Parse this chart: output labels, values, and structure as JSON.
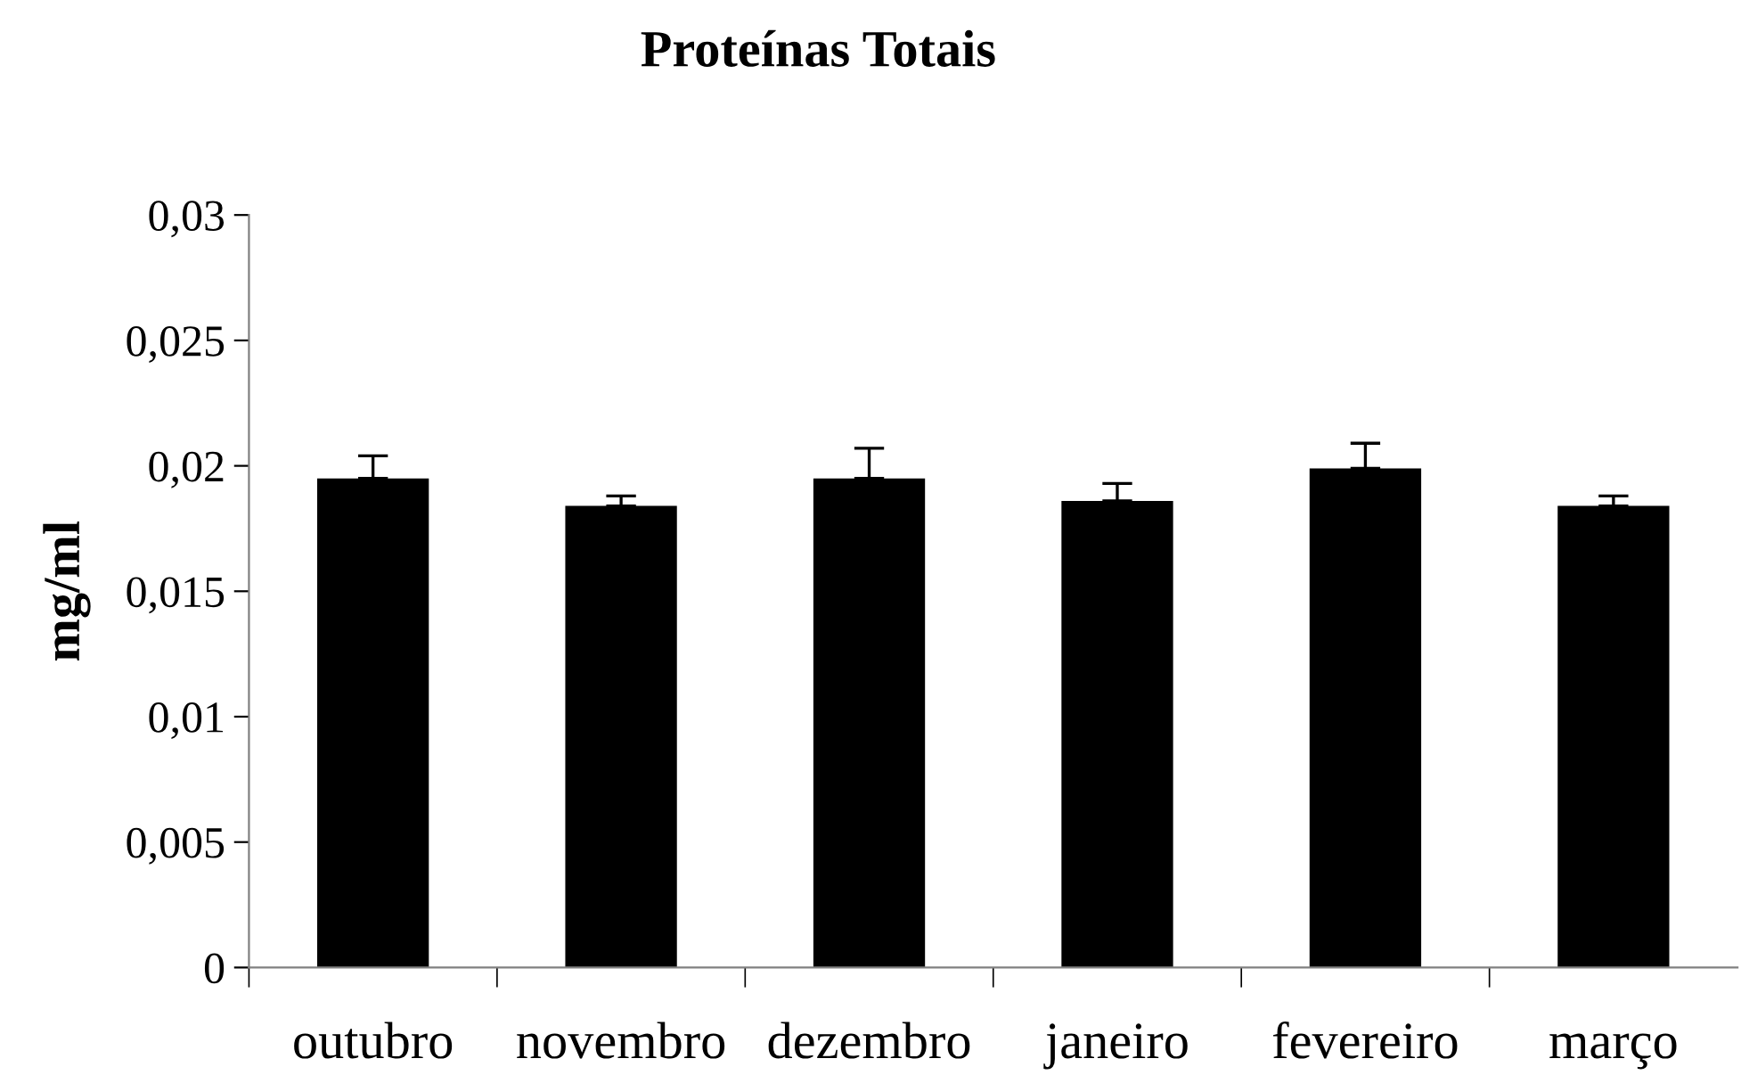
{
  "chart_data": {
    "type": "bar",
    "title": "Proteínas Totais",
    "ylabel": "mg/ml",
    "categories": [
      "outubro",
      "novembro",
      "dezembro",
      "janeiro",
      "fevereiro",
      "março"
    ],
    "values": [
      0.0195,
      0.0184,
      0.0195,
      0.0186,
      0.0199,
      0.0184
    ],
    "errors": [
      [
        0.0195,
        0.0204
      ],
      [
        0.0184,
        0.0188
      ],
      [
        0.0195,
        0.0207
      ],
      [
        0.0186,
        0.0193
      ],
      [
        0.0199,
        0.0209
      ],
      [
        0.0184,
        0.0188
      ]
    ],
    "color": "#000000",
    "ylim": [
      0,
      0.03
    ],
    "yticks": [
      {
        "value": 0,
        "label": "0"
      },
      {
        "value": 0.005,
        "label": "0,005"
      },
      {
        "value": 0.01,
        "label": "0,01"
      },
      {
        "value": 0.015,
        "label": "0,015"
      },
      {
        "value": 0.02,
        "label": "0,02"
      },
      {
        "value": 0.025,
        "label": "0,025"
      },
      {
        "value": 0.03,
        "label": "0,03"
      }
    ],
    "grid": false,
    "legend": false
  }
}
